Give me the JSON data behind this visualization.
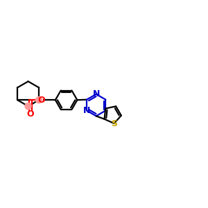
{
  "bg_color": "#ffffff",
  "bond_color": "#000000",
  "ester_color": "#ff0000",
  "nitrogen_color": "#0000cd",
  "sulfur_color": "#ccaa00",
  "highlight_color": "#ff9999",
  "figsize": [
    3.0,
    3.0
  ],
  "dpi": 100,
  "xlim": [
    0,
    14
  ],
  "ylim": [
    0,
    10
  ]
}
